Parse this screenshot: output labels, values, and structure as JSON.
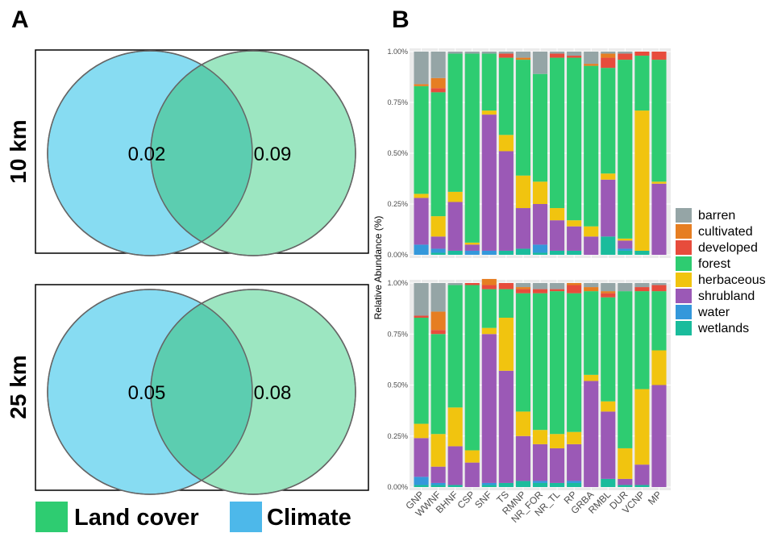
{
  "panels": {
    "a": "A",
    "b": "B"
  },
  "venn": {
    "rows": [
      {
        "label": "10 km",
        "climate_value": "0.02",
        "landcover_value": "0.09"
      },
      {
        "label": "25 km",
        "climate_value": "0.05",
        "landcover_value": "0.08"
      }
    ],
    "legend": [
      {
        "name": "Land cover",
        "color": "#2ecc71"
      },
      {
        "name": "Climate",
        "color": "#4db8ea"
      }
    ],
    "colors": {
      "climate": "#87dcf2",
      "landcover": "#9ce6c1",
      "overlap": "#5ccdb0"
    }
  },
  "chart_data": {
    "type": "bar",
    "stacked": true,
    "ylabel": "Relative Abundance (%)",
    "yticks": [
      "0.00%",
      "0.25%",
      "0.50%",
      "0.75%",
      "1.00%"
    ],
    "ylim": [
      0,
      1
    ],
    "categories": [
      "GNP",
      "WWNF",
      "BHNF",
      "CSP",
      "SNF",
      "TS",
      "RMNP",
      "NR_FOR",
      "NR_TL",
      "RP",
      "GRBA",
      "RMBL",
      "DUR",
      "VCNP",
      "MP"
    ],
    "legend": [
      {
        "name": "barren",
        "color": "#95a5a6"
      },
      {
        "name": "cultivated",
        "color": "#e67e22"
      },
      {
        "name": "developed",
        "color": "#e74c3c"
      },
      {
        "name": "forest",
        "color": "#2ecc71"
      },
      {
        "name": "herbaceous",
        "color": "#f1c40f"
      },
      {
        "name": "shrubland",
        "color": "#9b59b6"
      },
      {
        "name": "water",
        "color": "#3498db"
      },
      {
        "name": "wetlands",
        "color": "#1abc9c"
      }
    ],
    "stack_order": [
      "wetlands",
      "water",
      "shrubland",
      "herbaceous",
      "forest",
      "developed",
      "cultivated",
      "barren"
    ],
    "facets": [
      {
        "name": "10 km",
        "values": {
          "wetlands": [
            0.0,
            0.01,
            0.02,
            0.0,
            0.0,
            0.02,
            0.03,
            0.01,
            0.02,
            0.02,
            0.0,
            0.09,
            0.02,
            0.02,
            0.0
          ],
          "water": [
            0.05,
            0.02,
            0.0,
            0.02,
            0.02,
            0.0,
            0.0,
            0.04,
            0.0,
            0.0,
            0.0,
            0.0,
            0.01,
            0.0,
            0.0
          ],
          "shrubland": [
            0.23,
            0.06,
            0.24,
            0.03,
            0.67,
            0.49,
            0.2,
            0.2,
            0.15,
            0.12,
            0.09,
            0.28,
            0.04,
            0.0,
            0.35
          ],
          "herbaceous": [
            0.02,
            0.1,
            0.05,
            0.01,
            0.02,
            0.08,
            0.16,
            0.11,
            0.06,
            0.03,
            0.05,
            0.03,
            0.01,
            0.69,
            0.01
          ],
          "forest": [
            0.53,
            0.61,
            0.68,
            0.93,
            0.28,
            0.38,
            0.57,
            0.53,
            0.74,
            0.8,
            0.79,
            0.52,
            0.88,
            0.27,
            0.6
          ],
          "developed": [
            0.0,
            0.02,
            0.0,
            0.0,
            0.0,
            0.02,
            0.0,
            0.0,
            0.02,
            0.01,
            0.0,
            0.05,
            0.03,
            0.02,
            0.04
          ],
          "cultivated": [
            0.01,
            0.05,
            0.0,
            0.0,
            0.0,
            0.0,
            0.01,
            0.0,
            0.0,
            0.0,
            0.01,
            0.02,
            0.0,
            0.0,
            0.0
          ],
          "barren": [
            0.16,
            0.13,
            0.01,
            0.01,
            0.01,
            0.01,
            0.03,
            0.11,
            0.01,
            0.02,
            0.06,
            0.01,
            0.01,
            0.0,
            0.0
          ]
        }
      },
      {
        "name": "25 km",
        "values": {
          "wetlands": [
            0.01,
            0.01,
            0.01,
            0.0,
            0.01,
            0.02,
            0.03,
            0.02,
            0.02,
            0.02,
            0.0,
            0.04,
            0.01,
            0.01,
            0.0
          ],
          "water": [
            0.04,
            0.01,
            0.0,
            0.0,
            0.01,
            0.0,
            0.0,
            0.01,
            0.0,
            0.01,
            0.0,
            0.0,
            0.0,
            0.0,
            0.0
          ],
          "shrubland": [
            0.19,
            0.08,
            0.19,
            0.12,
            0.73,
            0.55,
            0.22,
            0.18,
            0.17,
            0.18,
            0.52,
            0.33,
            0.03,
            0.1,
            0.5
          ],
          "herbaceous": [
            0.07,
            0.16,
            0.19,
            0.06,
            0.03,
            0.26,
            0.12,
            0.07,
            0.07,
            0.06,
            0.03,
            0.05,
            0.15,
            0.37,
            0.17
          ],
          "forest": [
            0.52,
            0.49,
            0.6,
            0.81,
            0.19,
            0.14,
            0.58,
            0.67,
            0.7,
            0.68,
            0.41,
            0.51,
            0.77,
            0.48,
            0.29
          ],
          "developed": [
            0.01,
            0.02,
            0.0,
            0.01,
            0.02,
            0.03,
            0.02,
            0.02,
            0.01,
            0.04,
            0.0,
            0.02,
            0.0,
            0.02,
            0.03
          ],
          "cultivated": [
            0.0,
            0.09,
            0.0,
            0.0,
            0.03,
            0.0,
            0.01,
            0.0,
            0.0,
            0.01,
            0.02,
            0.01,
            0.0,
            0.0,
            0.0
          ],
          "barren": [
            0.16,
            0.14,
            0.01,
            0.0,
            0.0,
            0.0,
            0.02,
            0.03,
            0.03,
            0.0,
            0.02,
            0.04,
            0.04,
            0.02,
            0.01
          ]
        }
      }
    ]
  }
}
